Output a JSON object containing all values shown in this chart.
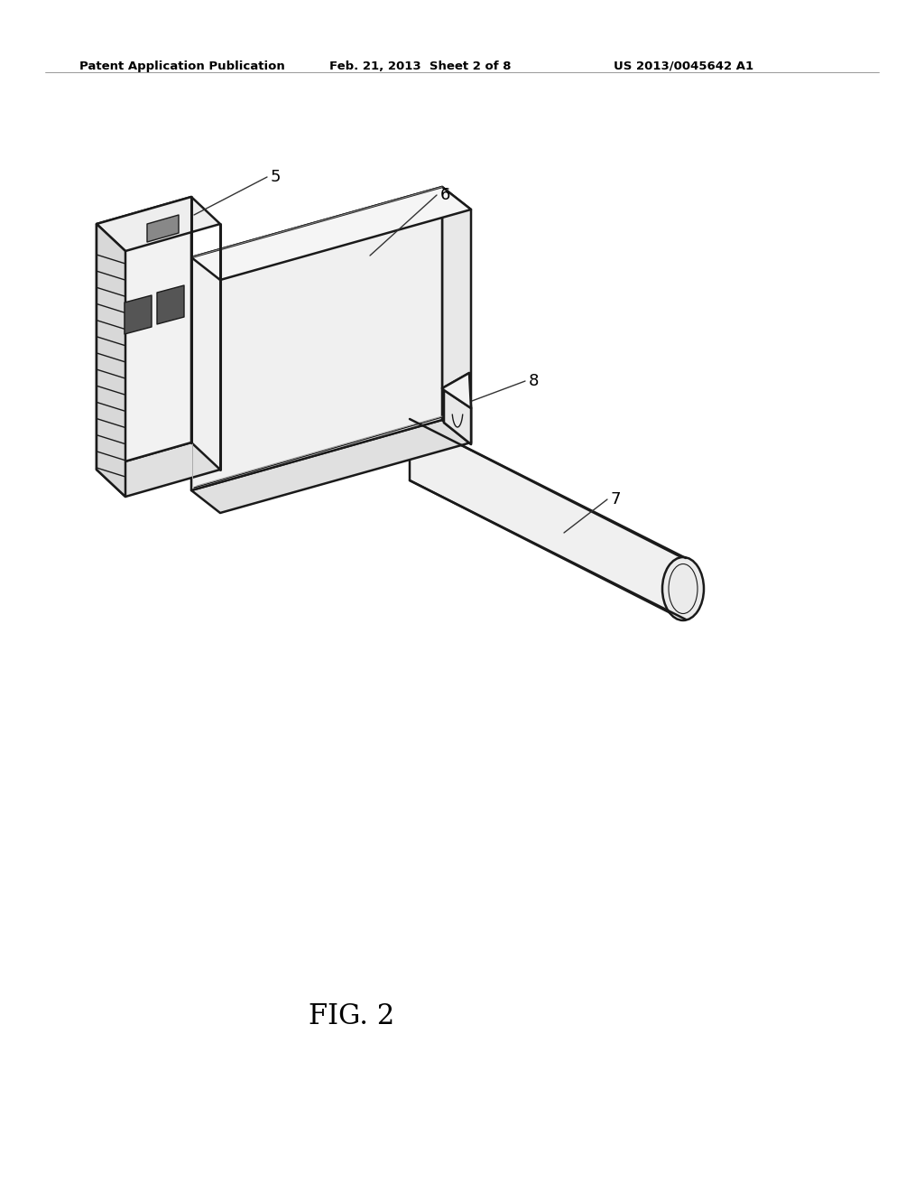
{
  "header_left": "Patent Application Publication",
  "header_center": "Feb. 21, 2013  Sheet 2 of 8",
  "header_right": "US 2013/0045642 A1",
  "fig_label": "FIG. 2",
  "bg": "#ffffff",
  "lc": "#1a1a1a",
  "lw": 1.8,
  "header_fs": 9.5,
  "fig_fs": 22,
  "label_fs": 13,
  "body_top_fill": "#f5f5f5",
  "body_face_fill": "#f0f0f0",
  "body_side_fill": "#e8e8e8",
  "body_bot_fill": "#e0e0e0",
  "plug_top_fill": "#eeeeee",
  "plug_face_fill": "#f2f2f2",
  "plug_side_fill": "#e0e0e0",
  "plug_tip_fill": "#d8d8d8",
  "cable_fill": "#f0f0f0",
  "boot_fill": "#e8e8e8",
  "stripe_fill": "#c8c8c8",
  "sq_fill": "#555555",
  "notch_fill": "#888888"
}
